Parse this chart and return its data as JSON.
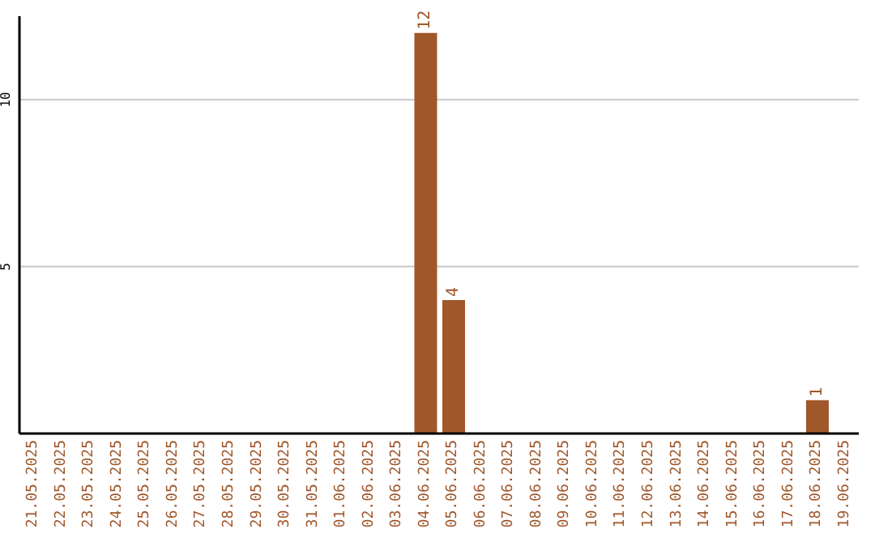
{
  "chart_data": {
    "type": "bar",
    "categories": [
      "21.05.2025",
      "22.05.2025",
      "23.05.2025",
      "24.05.2025",
      "25.05.2025",
      "26.05.2025",
      "27.05.2025",
      "28.05.2025",
      "29.05.2025",
      "30.05.2025",
      "31.05.2025",
      "01.06.2025",
      "02.06.2025",
      "03.06.2025",
      "04.06.2025",
      "05.06.2025",
      "06.06.2025",
      "07.06.2025",
      "08.06.2025",
      "09.06.2025",
      "10.06.2025",
      "11.06.2025",
      "12.06.2025",
      "13.06.2025",
      "14.06.2025",
      "15.06.2025",
      "16.06.2025",
      "17.06.2025",
      "18.06.2025",
      "19.06.2025"
    ],
    "values": [
      0,
      0,
      0,
      0,
      0,
      0,
      0,
      0,
      0,
      0,
      0,
      0,
      0,
      0,
      12,
      4,
      0,
      0,
      0,
      0,
      0,
      0,
      0,
      0,
      0,
      0,
      0,
      0,
      1,
      0
    ],
    "value_labels": [
      null,
      null,
      null,
      null,
      null,
      null,
      null,
      null,
      null,
      null,
      null,
      null,
      null,
      null,
      "12",
      "4",
      null,
      null,
      null,
      null,
      null,
      null,
      null,
      null,
      null,
      null,
      null,
      null,
      "1",
      null
    ],
    "color": "#a0572a",
    "ylim": [
      0,
      12.5
    ],
    "yticks": [
      5,
      10
    ],
    "grid": "y"
  }
}
